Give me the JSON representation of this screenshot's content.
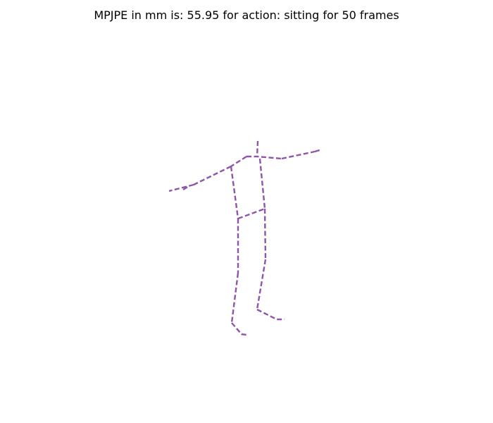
{
  "figure": {
    "title": "MPJPE in mm is: 55.95 for action: sitting for 50 frames",
    "skeleton_color": "#8e55a8"
  }
}
